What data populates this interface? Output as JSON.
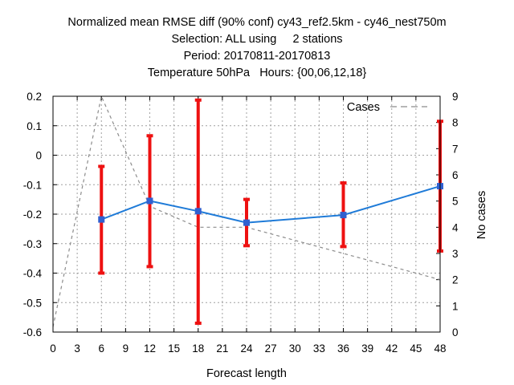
{
  "chart_data": {
    "type": "line",
    "title_lines": [
      "Normalized mean RMSE diff (90% conf) cy43_ref2.5km - cy46_nest750m",
      "Selection: ALL using     2 stations",
      "Period: 20170811-20170813",
      "Temperature 50hPa   Hours: {00,06,12,18}"
    ],
    "xlabel": "Forecast length",
    "ylabel": "",
    "y2label": "No cases",
    "xlim": [
      0,
      48
    ],
    "ylim": [
      -0.6,
      0.2
    ],
    "y2lim": [
      0,
      9
    ],
    "xticks": [
      "0",
      "3",
      "6",
      "9",
      "12",
      "15",
      "18",
      "21",
      "24",
      "27",
      "30",
      "33",
      "36",
      "39",
      "42",
      "45",
      "48"
    ],
    "yticks": [
      "0.2",
      "0.1",
      "0",
      "-0.1",
      "-0.2",
      "-0.3",
      "-0.4",
      "-0.5",
      "-0.6"
    ],
    "y2ticks": [
      "9",
      "8",
      "7",
      "6",
      "5",
      "4",
      "3",
      "2",
      "1",
      "0"
    ],
    "grid": true,
    "legend_position": "top-right",
    "colors": {
      "line": "#1f7bd8",
      "marker": "#3060d0",
      "errorbar": "#ee1111",
      "cases": "#8c8c8c"
    },
    "series": [
      {
        "role": "mean-diff",
        "x": [
          6,
          12,
          18,
          24,
          36,
          48
        ],
        "y": [
          -0.218,
          -0.155,
          -0.19,
          -0.229,
          -0.203,
          -0.105
        ],
        "low": [
          -0.4,
          -0.378,
          -0.57,
          -0.307,
          -0.31,
          -0.325
        ],
        "high": [
          -0.038,
          0.066,
          0.187,
          -0.15,
          -0.094,
          0.115
        ]
      },
      {
        "role": "cases",
        "name": "Cases",
        "axis": "right",
        "x": [
          0,
          6,
          12,
          18,
          24,
          36,
          48
        ],
        "y": [
          0.2,
          9,
          4.8,
          4.0,
          4.0,
          3.0,
          2.0
        ]
      }
    ]
  }
}
